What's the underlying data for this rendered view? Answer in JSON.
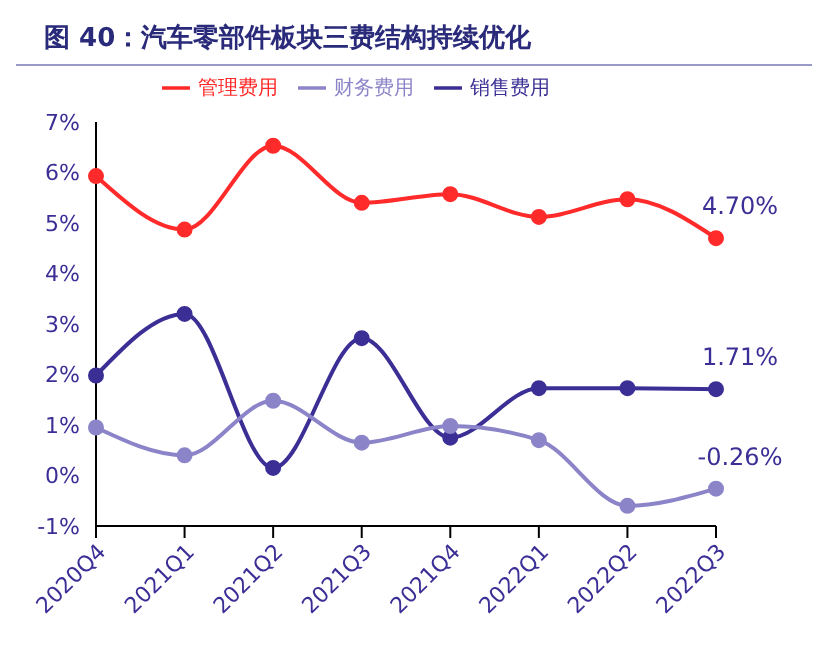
{
  "chart_data": {
    "type": "line",
    "title": "图 40：汽车零部件板块三费结构持续优化",
    "categories": [
      "2020Q4",
      "2021Q1",
      "2021Q2",
      "2021Q3",
      "2021Q4",
      "2022Q1",
      "2022Q2",
      "2022Q3"
    ],
    "series": [
      {
        "name": "销售费用",
        "color": "#3b2f96",
        "values": [
          1.98,
          3.2,
          0.15,
          2.72,
          0.75,
          1.73,
          1.73,
          1.71
        ],
        "value_labels": [
          null,
          null,
          null,
          null,
          null,
          null,
          null,
          "1.71%"
        ]
      },
      {
        "name": "管理费用",
        "color": "#ff2a2a",
        "values": [
          5.93,
          4.87,
          6.53,
          5.4,
          5.57,
          5.12,
          5.47,
          4.7
        ],
        "value_labels": [
          null,
          null,
          null,
          null,
          null,
          null,
          null,
          "4.70%"
        ]
      },
      {
        "name": "财务费用",
        "color": "#8c84c8",
        "values": [
          0.95,
          0.4,
          1.48,
          0.65,
          0.98,
          0.7,
          -0.6,
          -0.26
        ],
        "value_labels": [
          null,
          null,
          null,
          null,
          null,
          null,
          null,
          "-0.26%"
        ]
      }
    ],
    "ylim": [
      -1,
      7
    ],
    "yticks": [
      {
        "value": -1,
        "label": "-1%"
      },
      {
        "value": 0,
        "label": "0%"
      },
      {
        "value": 1,
        "label": "1%"
      },
      {
        "value": 2,
        "label": "2%"
      },
      {
        "value": 3,
        "label": "3%"
      },
      {
        "value": 4,
        "label": "4%"
      },
      {
        "value": 5,
        "label": "5%"
      },
      {
        "value": 6,
        "label": "6%"
      },
      {
        "value": 7,
        "label": "7%"
      }
    ],
    "grid": false,
    "legend": "top",
    "marker": "circle",
    "line_style": "solid"
  }
}
